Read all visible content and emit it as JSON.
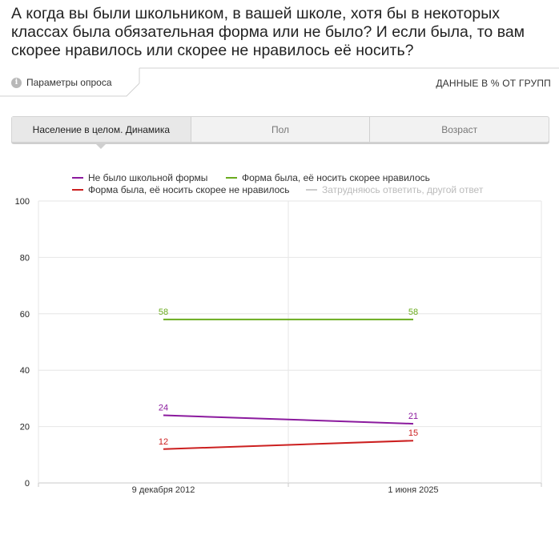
{
  "question": "А когда вы были школьником, в вашей школе, хотя бы в некоторых классах была обязательная форма или не было? И если была, то вам скорее нравилось или скорее не нравилось её носить?",
  "meta": {
    "params_label": "Параметры опроса",
    "info_icon": "i",
    "data_label": "ДАННЫЕ В % ОТ ГРУПП"
  },
  "tabs": [
    {
      "label": "Население в целом. Динамика",
      "active": true
    },
    {
      "label": "Пол",
      "active": false
    },
    {
      "label": "Возраст",
      "active": false
    }
  ],
  "chart_data": {
    "type": "line",
    "x": [
      "9 декабря 2012",
      "1 июня 2025"
    ],
    "ylim": [
      0,
      100
    ],
    "yticks": [
      0,
      20,
      40,
      60,
      80,
      100
    ],
    "grid": true,
    "legend_position": "top",
    "series": [
      {
        "name": "Не было школьной формы",
        "color": "#8b1a9e",
        "values": [
          24,
          21
        ],
        "visible": true
      },
      {
        "name": "Форма была, её носить скорее нравилось",
        "color": "#6aab1e",
        "values": [
          58,
          58
        ],
        "visible": true
      },
      {
        "name": "Форма была, её носить скорее не нравилось",
        "color": "#cc2020",
        "values": [
          12,
          15
        ],
        "visible": true
      },
      {
        "name": "Затрудняюсь ответить, другой ответ",
        "color": "#cccccc",
        "values": [
          null,
          null
        ],
        "visible": false
      }
    ]
  }
}
